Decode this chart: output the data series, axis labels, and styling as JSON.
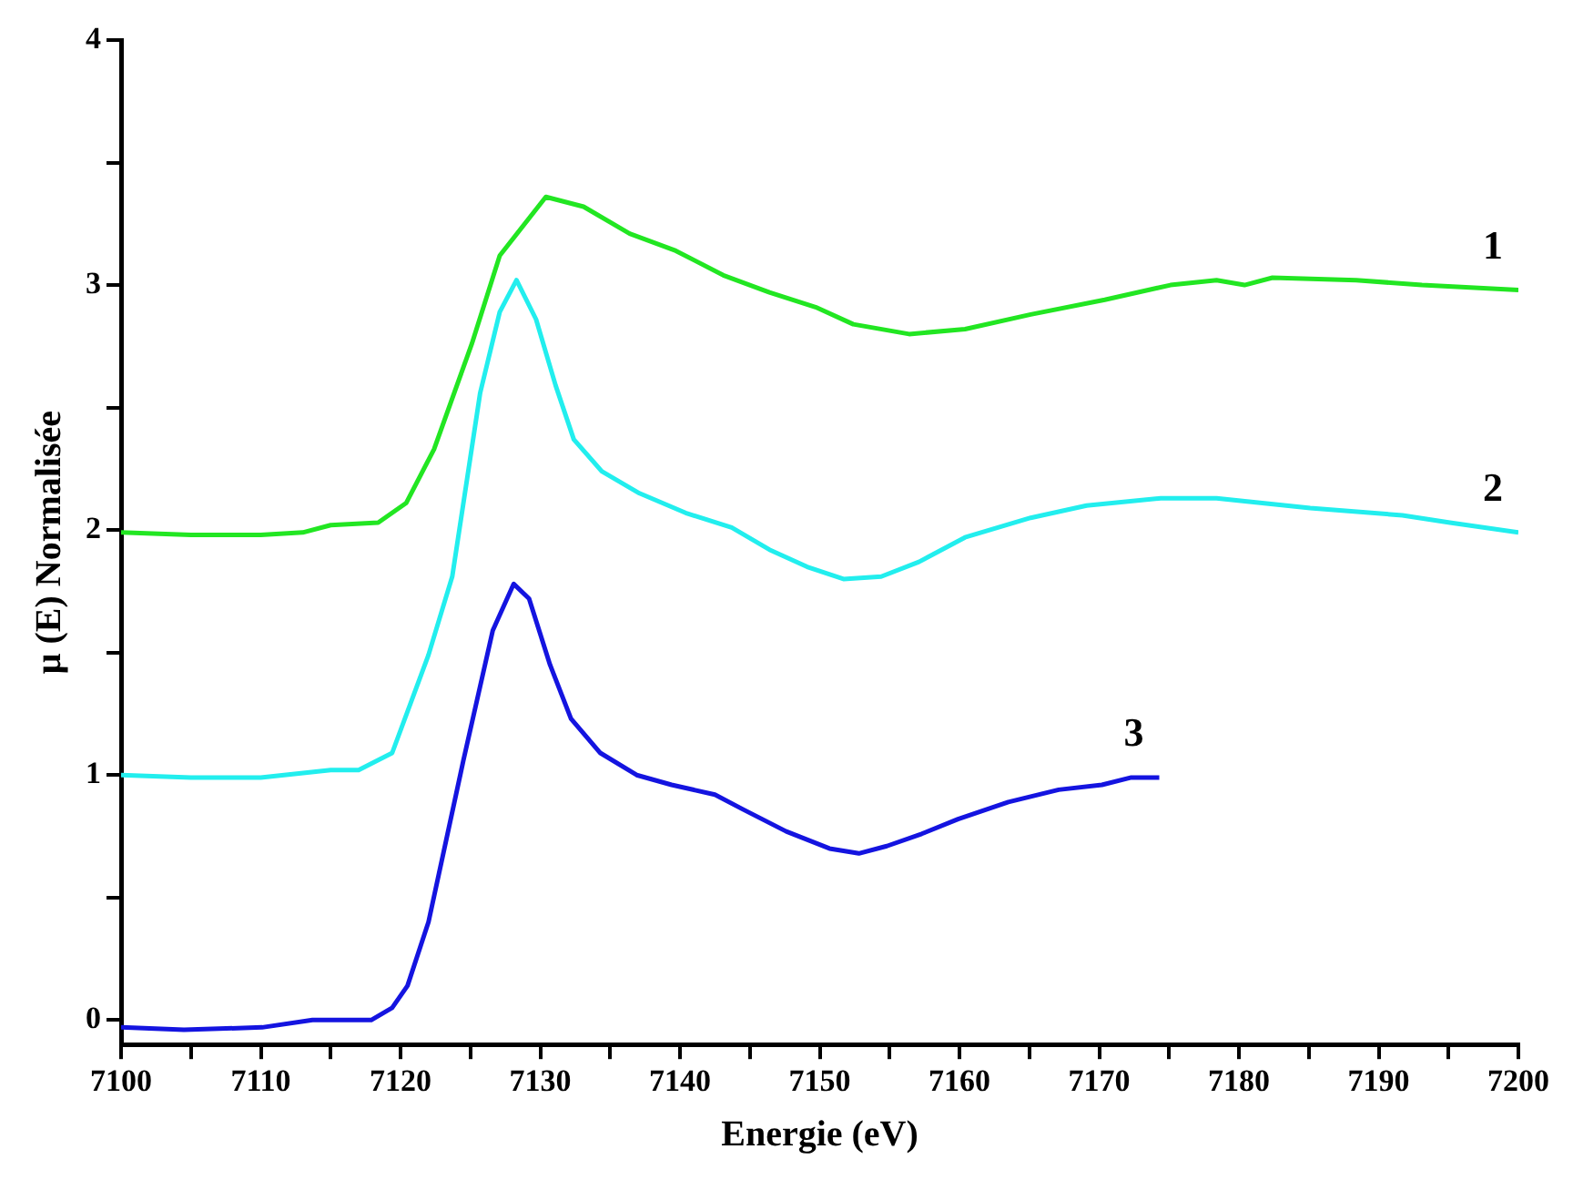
{
  "chart_data": {
    "type": "line",
    "xlabel": "Energie (eV)",
    "ylabel": "μ (E) Normalisée",
    "xlim": [
      7100,
      7200
    ],
    "ylim": [
      -0.1,
      4
    ],
    "xticks": [
      7100,
      {
        "value": 7105,
        "label": null
      },
      7110,
      {
        "value": 7115,
        "label": null
      },
      7120,
      {
        "value": 7125,
        "label": null
      },
      7130,
      {
        "value": 7135,
        "label": null
      },
      7140,
      {
        "value": 7145,
        "label": null
      },
      7150,
      {
        "value": 7155,
        "label": null
      },
      7160,
      {
        "value": 7165,
        "label": null
      },
      7170,
      {
        "value": 7175,
        "label": null
      },
      7180,
      {
        "value": 7185,
        "label": null
      },
      7190,
      {
        "value": 7195,
        "label": null
      },
      7200
    ],
    "yticks": [
      0,
      {
        "value": 0.5,
        "label": null
      },
      1,
      {
        "value": 1.5,
        "label": null
      },
      2,
      {
        "value": 2.5,
        "label": null
      },
      3,
      {
        "value": 3.5,
        "label": null
      },
      4
    ],
    "legend": false,
    "marker": "none",
    "series": [
      {
        "name": "1",
        "color": "#22e622",
        "x": [
          7100,
          7105,
          7110,
          7113,
          7115,
          7118.4,
          7120.4,
          7122.4,
          7125.1,
          7127.1,
          7130.4,
          7133.1,
          7136.4,
          7139.7,
          7143.1,
          7146.4,
          7149.7,
          7152.4,
          7156.4,
          7160.4,
          7165.1,
          7170.4,
          7175.1,
          7178.4,
          7180.4,
          7182.4,
          7188.4,
          7193.1,
          7200
        ],
        "values": [
          1.99,
          1.98,
          1.98,
          1.99,
          2.02,
          2.03,
          2.11,
          2.33,
          2.76,
          3.12,
          3.36,
          3.32,
          3.21,
          3.14,
          3.04,
          2.97,
          2.91,
          2.84,
          2.8,
          2.82,
          2.88,
          2.94,
          3.0,
          3.02,
          3.0,
          3.03,
          3.02,
          3.0,
          2.98
        ]
      },
      {
        "name": "2",
        "color": "#22eeee",
        "x": [
          7100,
          7105,
          7110,
          7115,
          7117,
          7119.4,
          7122,
          7123.7,
          7125.7,
          7127.1,
          7128.3,
          7129.7,
          7131.1,
          7132.4,
          7134.4,
          7137.1,
          7140.4,
          7143.7,
          7146.4,
          7149.1,
          7151.7,
          7154.4,
          7157.1,
          7160.4,
          7165.1,
          7169.1,
          7174.4,
          7178.4,
          7185.1,
          7191.7,
          7195.1,
          7200
        ],
        "values": [
          1.0,
          0.99,
          0.99,
          1.02,
          1.02,
          1.09,
          1.49,
          1.81,
          2.56,
          2.89,
          3.02,
          2.86,
          2.59,
          2.37,
          2.24,
          2.15,
          2.07,
          2.01,
          1.92,
          1.85,
          1.8,
          1.81,
          1.87,
          1.97,
          2.05,
          2.1,
          2.13,
          2.13,
          2.09,
          2.06,
          2.03,
          1.99
        ]
      },
      {
        "name": "3",
        "color": "#1414e0",
        "x": [
          7100,
          7104.5,
          7110.1,
          7113.7,
          7117.9,
          7119.4,
          7120.5,
          7122,
          7124.5,
          7126.6,
          7128.1,
          7129.2,
          7130.7,
          7132.2,
          7134.3,
          7136.9,
          7139.4,
          7142.5,
          7144.5,
          7147.6,
          7150.7,
          7152.8,
          7154.8,
          7157.3,
          7159.9,
          7163.5,
          7167.1,
          7170.2,
          7172.3,
          7174.3
        ],
        "values": [
          -0.03,
          -0.04,
          -0.03,
          0.0,
          0.0,
          0.05,
          0.14,
          0.4,
          1.06,
          1.59,
          1.78,
          1.72,
          1.45,
          1.23,
          1.09,
          1.0,
          0.96,
          0.92,
          0.86,
          0.77,
          0.7,
          0.68,
          0.71,
          0.76,
          0.82,
          0.89,
          0.94,
          0.96,
          0.99,
          0.99
        ]
      }
    ]
  }
}
